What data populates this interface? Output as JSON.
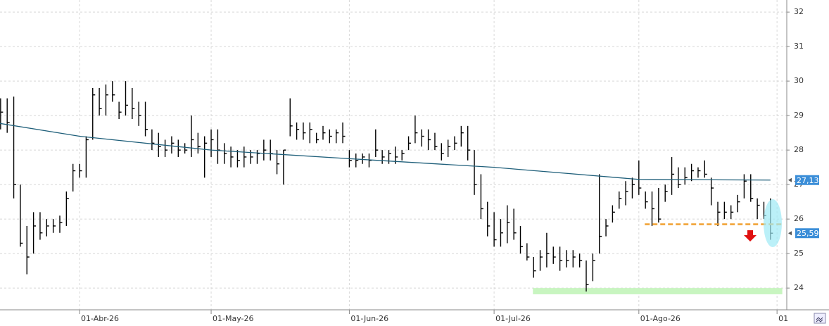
{
  "chart_data": {
    "type": "ohlc",
    "xlim": [
      0.91,
      120.48
    ],
    "ylim": [
      23.37,
      32.35
    ],
    "yticks": [
      24,
      25,
      26,
      27,
      28,
      29,
      30,
      31,
      32
    ],
    "xticks": [
      {
        "value": 13,
        "label": "01-Abr-26"
      },
      {
        "value": 33,
        "label": "01-May-26"
      },
      {
        "value": 54,
        "label": "01-Jun-26"
      },
      {
        "value": 76,
        "label": "01-Jul-26"
      },
      {
        "value": 98,
        "label": "01-Ago-26"
      },
      {
        "value": 119,
        "label": "01"
      }
    ],
    "grid": true,
    "color": "#000000",
    "high": [
      29.5,
      29.5,
      29.5,
      29.55,
      27.0,
      25.8,
      26.2,
      26.2,
      26.0,
      26.0,
      26.1,
      26.8,
      27.6,
      27.6,
      28.4,
      29.8,
      29.8,
      29.9,
      30.0,
      29.4,
      30.0,
      29.8,
      29.4,
      29.4,
      28.6,
      28.5,
      28.3,
      28.4,
      28.3,
      28.2,
      29.0,
      28.5,
      28.4,
      28.6,
      28.6,
      28.2,
      28.1,
      28.0,
      28.1,
      28.0,
      28.0,
      28.3,
      28.3,
      28.0,
      28.0,
      29.5,
      28.8,
      28.8,
      28.8,
      28.5,
      28.7,
      28.6,
      28.6,
      28.8,
      28.0,
      27.9,
      27.9,
      27.9,
      28.6,
      28.0,
      28.0,
      28.1,
      28.0,
      28.4,
      29.0,
      28.6,
      28.6,
      28.5,
      28.2,
      28.3,
      28.4,
      28.7,
      28.7,
      28.0,
      27.3,
      26.5,
      26.2,
      26.0,
      26.4,
      26.3,
      25.8,
      25.3,
      24.9,
      25.1,
      25.6,
      25.2,
      25.2,
      25.1,
      25.1,
      25.0,
      24.8,
      25.0,
      27.3,
      26.0,
      26.4,
      26.8,
      27.1,
      27.2,
      27.7,
      26.8,
      26.8,
      26.9,
      27.0,
      27.8,
      27.5,
      27.5,
      27.6,
      27.5,
      27.7,
      27.2,
      26.5,
      26.5,
      26.4,
      26.7,
      27.3,
      27.3,
      26.6,
      26.5,
      26.6
    ],
    "low": [
      28.7,
      28.6,
      28.5,
      26.6,
      25.2,
      24.4,
      25.0,
      25.4,
      25.5,
      25.6,
      25.6,
      25.8,
      26.8,
      27.2,
      27.2,
      28.3,
      29.0,
      29.0,
      29.4,
      28.9,
      29.0,
      28.9,
      28.7,
      28.4,
      28.0,
      27.8,
      27.8,
      27.9,
      27.8,
      27.9,
      27.8,
      27.9,
      27.2,
      27.8,
      27.6,
      27.6,
      27.5,
      27.5,
      27.5,
      27.6,
      27.6,
      27.7,
      27.7,
      27.3,
      27.0,
      28.4,
      28.3,
      28.3,
      28.2,
      28.2,
      28.3,
      28.2,
      28.2,
      28.2,
      27.5,
      27.5,
      27.6,
      27.5,
      27.8,
      27.6,
      27.6,
      27.6,
      27.7,
      28.0,
      28.2,
      28.1,
      28.0,
      28.0,
      27.7,
      27.8,
      28.0,
      28.1,
      27.7,
      26.7,
      26.0,
      25.5,
      25.2,
      25.2,
      25.3,
      25.4,
      25.0,
      24.8,
      24.3,
      24.5,
      24.6,
      24.7,
      24.5,
      24.6,
      24.6,
      24.6,
      23.9,
      24.2,
      25.0,
      25.5,
      25.9,
      26.3,
      26.4,
      26.6,
      26.7,
      26.3,
      25.8,
      25.9,
      26.5,
      26.7,
      26.9,
      27.0,
      27.1,
      27.2,
      27.2,
      26.4,
      25.8,
      26.0,
      26.0,
      26.2,
      26.6,
      26.5,
      26.0,
      26.0,
      25.4
    ],
    "close": [
      29.0,
      29.1,
      28.8,
      27.0,
      25.3,
      24.9,
      25.8,
      25.6,
      25.8,
      25.8,
      25.9,
      26.6,
      27.4,
      27.4,
      28.3,
      29.6,
      29.2,
      29.6,
      29.6,
      29.1,
      29.3,
      29.2,
      29.0,
      28.6,
      28.2,
      28.1,
      28.0,
      28.2,
      28.0,
      28.0,
      28.3,
      28.1,
      28.2,
      28.3,
      28.0,
      27.9,
      27.8,
      27.7,
      27.8,
      27.8,
      27.9,
      28.0,
      27.9,
      27.6,
      28.0,
      28.7,
      28.6,
      28.5,
      28.6,
      28.3,
      28.5,
      28.4,
      28.5,
      28.4,
      27.7,
      27.7,
      27.8,
      27.7,
      28.0,
      27.8,
      27.9,
      27.8,
      27.9,
      28.2,
      28.5,
      28.4,
      28.3,
      28.1,
      27.9,
      28.1,
      28.2,
      28.5,
      28.0,
      27.0,
      26.3,
      25.8,
      25.4,
      25.6,
      25.9,
      25.6,
      25.2,
      24.9,
      24.5,
      24.9,
      25.0,
      24.9,
      24.8,
      24.8,
      24.9,
      24.8,
      24.1,
      24.8,
      25.5,
      25.8,
      26.2,
      26.6,
      26.8,
      27.0,
      26.9,
      26.5,
      26.3,
      26.0,
      26.8,
      27.3,
      27.0,
      27.2,
      27.4,
      27.4,
      27.3,
      26.9,
      26.2,
      26.2,
      26.2,
      26.5,
      27.1,
      26.6,
      26.4,
      26.1,
      25.59
    ],
    "moving_average": {
      "color": "#1f5f7a",
      "x": [
        0,
        13,
        33,
        54,
        76,
        98,
        118
      ],
      "values": [
        28.8,
        28.4,
        28.0,
        27.75,
        27.5,
        27.15,
        27.13
      ]
    },
    "price_labels": [
      {
        "value": 27.13,
        "label": "27,13"
      },
      {
        "value": 25.59,
        "label": "25,59"
      }
    ],
    "level_line": {
      "value": 25.85,
      "from": 98.9,
      "to": 119.8,
      "color": "#f0a030"
    },
    "support_zone": {
      "low": 23.82,
      "high": 24.0,
      "from": 81.9,
      "to": 119.8,
      "color": "#c8f5c0"
    }
  }
}
